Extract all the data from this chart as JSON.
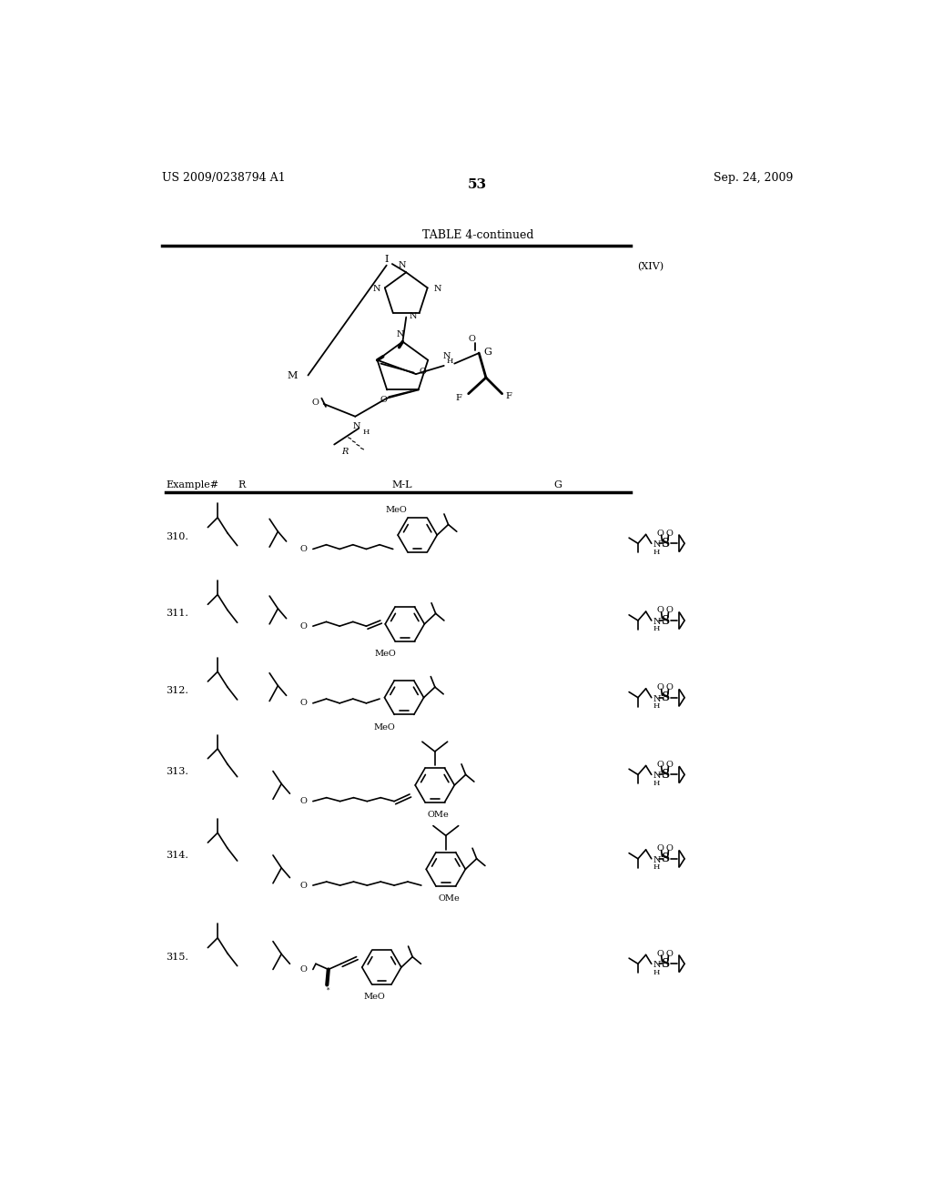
{
  "page_number": "53",
  "patent_left": "US 2009/0238794 A1",
  "patent_right": "Sep. 24, 2009",
  "table_title": "TABLE 4-continued",
  "formula_label": "(XIV)",
  "background_color": "#ffffff",
  "text_color": "#000000",
  "rows": [
    "310.",
    "311.",
    "312.",
    "313.",
    "314.",
    "315."
  ]
}
